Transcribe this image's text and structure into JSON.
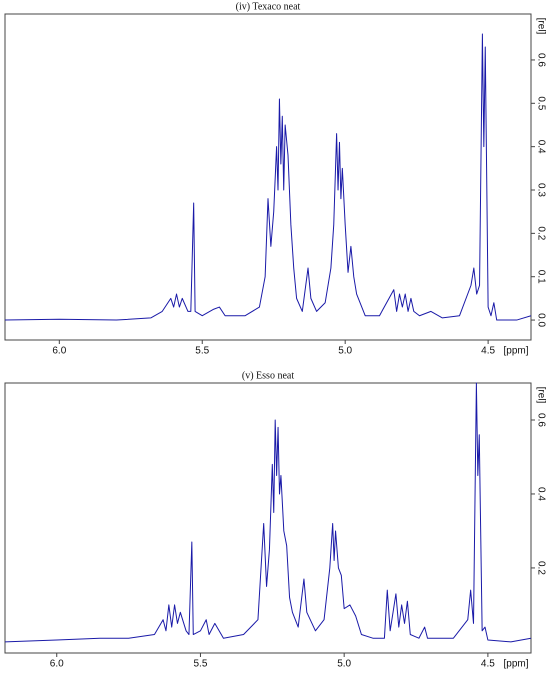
{
  "chart_data": [
    {
      "type": "line",
      "title": "(iv) Texaco neat",
      "x_label": "[ppm]",
      "y_label": "[rel]",
      "color": "#1a1aa8",
      "xlim": [
        6.19,
        4.35
      ],
      "ylim": [
        -0.046,
        0.706
      ],
      "xticks": [
        {
          "value": 6,
          "label": "6.0"
        },
        5.5,
        {
          "value": 5,
          "label": "5.0"
        },
        4.5
      ],
      "yticks": [
        {
          "value": 0,
          "label": "0.0"
        },
        0.1,
        0.2,
        0.3,
        0.4,
        0.5,
        0.6
      ],
      "x": [
        6.19,
        6.0,
        5.8,
        5.68,
        5.64,
        5.61,
        5.6,
        5.59,
        5.58,
        5.57,
        5.55,
        5.54,
        5.53,
        5.525,
        5.5,
        5.46,
        5.44,
        5.42,
        5.35,
        5.3,
        5.28,
        5.27,
        5.26,
        5.25,
        5.24,
        5.235,
        5.23,
        5.225,
        5.22,
        5.215,
        5.21,
        5.2,
        5.19,
        5.18,
        5.17,
        5.15,
        5.13,
        5.12,
        5.1,
        5.07,
        5.05,
        5.04,
        5.03,
        5.025,
        5.02,
        5.015,
        5.01,
        5.0,
        4.99,
        4.98,
        4.97,
        4.96,
        4.93,
        4.88,
        4.83,
        4.82,
        4.81,
        4.8,
        4.79,
        4.78,
        4.77,
        4.76,
        4.74,
        4.7,
        4.66,
        4.6,
        4.56,
        4.55,
        4.54,
        4.53,
        4.52,
        4.515,
        4.51,
        4.5,
        4.49,
        4.48,
        4.47,
        4.4,
        4.35
      ],
      "values": [
        0.0,
        0.002,
        0.0,
        0.005,
        0.02,
        0.05,
        0.03,
        0.06,
        0.03,
        0.05,
        0.02,
        0.02,
        0.27,
        0.02,
        0.01,
        0.025,
        0.03,
        0.01,
        0.01,
        0.03,
        0.1,
        0.28,
        0.17,
        0.25,
        0.4,
        0.3,
        0.51,
        0.36,
        0.47,
        0.3,
        0.45,
        0.38,
        0.22,
        0.12,
        0.05,
        0.02,
        0.12,
        0.05,
        0.02,
        0.04,
        0.12,
        0.22,
        0.43,
        0.3,
        0.41,
        0.28,
        0.35,
        0.22,
        0.11,
        0.17,
        0.1,
        0.06,
        0.01,
        0.01,
        0.07,
        0.02,
        0.06,
        0.03,
        0.06,
        0.02,
        0.05,
        0.02,
        0.01,
        0.02,
        0.005,
        0.01,
        0.08,
        0.12,
        0.06,
        0.08,
        0.66,
        0.4,
        0.63,
        0.03,
        0.01,
        0.04,
        0.0,
        0.0,
        0.01
      ]
    },
    {
      "type": "line",
      "title": "(v) Esso neat",
      "x_label": "[ppm]",
      "y_label": "[rel]",
      "color": "#1a1aa8",
      "xlim": [
        6.18,
        4.35
      ],
      "ylim": [
        -0.03,
        0.7
      ],
      "xticks": [
        {
          "value": 6,
          "label": "6.0"
        },
        5.5,
        {
          "value": 5,
          "label": "5.0"
        },
        4.5
      ],
      "yticks": [
        0.2,
        0.4,
        0.6
      ],
      "x": [
        6.18,
        6.0,
        5.85,
        5.75,
        5.66,
        5.63,
        5.62,
        5.61,
        5.6,
        5.59,
        5.58,
        5.57,
        5.55,
        5.54,
        5.53,
        5.525,
        5.5,
        5.48,
        5.47,
        5.45,
        5.42,
        5.35,
        5.3,
        5.28,
        5.27,
        5.26,
        5.25,
        5.245,
        5.24,
        5.235,
        5.23,
        5.225,
        5.22,
        5.21,
        5.2,
        5.19,
        5.18,
        5.16,
        5.14,
        5.13,
        5.1,
        5.07,
        5.05,
        5.04,
        5.035,
        5.03,
        5.02,
        5.01,
        5.0,
        4.98,
        4.96,
        4.94,
        4.9,
        4.86,
        4.85,
        4.84,
        4.82,
        4.81,
        4.8,
        4.79,
        4.78,
        4.77,
        4.74,
        4.72,
        4.71,
        4.62,
        4.57,
        4.56,
        4.55,
        4.54,
        4.535,
        4.53,
        4.52,
        4.51,
        4.5,
        4.42,
        4.35
      ],
      "values": [
        0.0,
        0.005,
        0.01,
        0.01,
        0.02,
        0.06,
        0.03,
        0.1,
        0.04,
        0.1,
        0.05,
        0.08,
        0.03,
        0.02,
        0.27,
        0.02,
        0.03,
        0.06,
        0.02,
        0.05,
        0.01,
        0.02,
        0.06,
        0.32,
        0.15,
        0.25,
        0.48,
        0.35,
        0.6,
        0.45,
        0.58,
        0.4,
        0.45,
        0.3,
        0.26,
        0.12,
        0.08,
        0.04,
        0.17,
        0.08,
        0.03,
        0.06,
        0.2,
        0.32,
        0.22,
        0.3,
        0.2,
        0.18,
        0.09,
        0.1,
        0.07,
        0.02,
        0.01,
        0.01,
        0.14,
        0.03,
        0.13,
        0.04,
        0.1,
        0.05,
        0.11,
        0.02,
        0.01,
        0.04,
        0.01,
        0.01,
        0.06,
        0.14,
        0.05,
        0.7,
        0.45,
        0.56,
        0.03,
        0.04,
        0.005,
        0.0,
        0.01
      ]
    }
  ]
}
